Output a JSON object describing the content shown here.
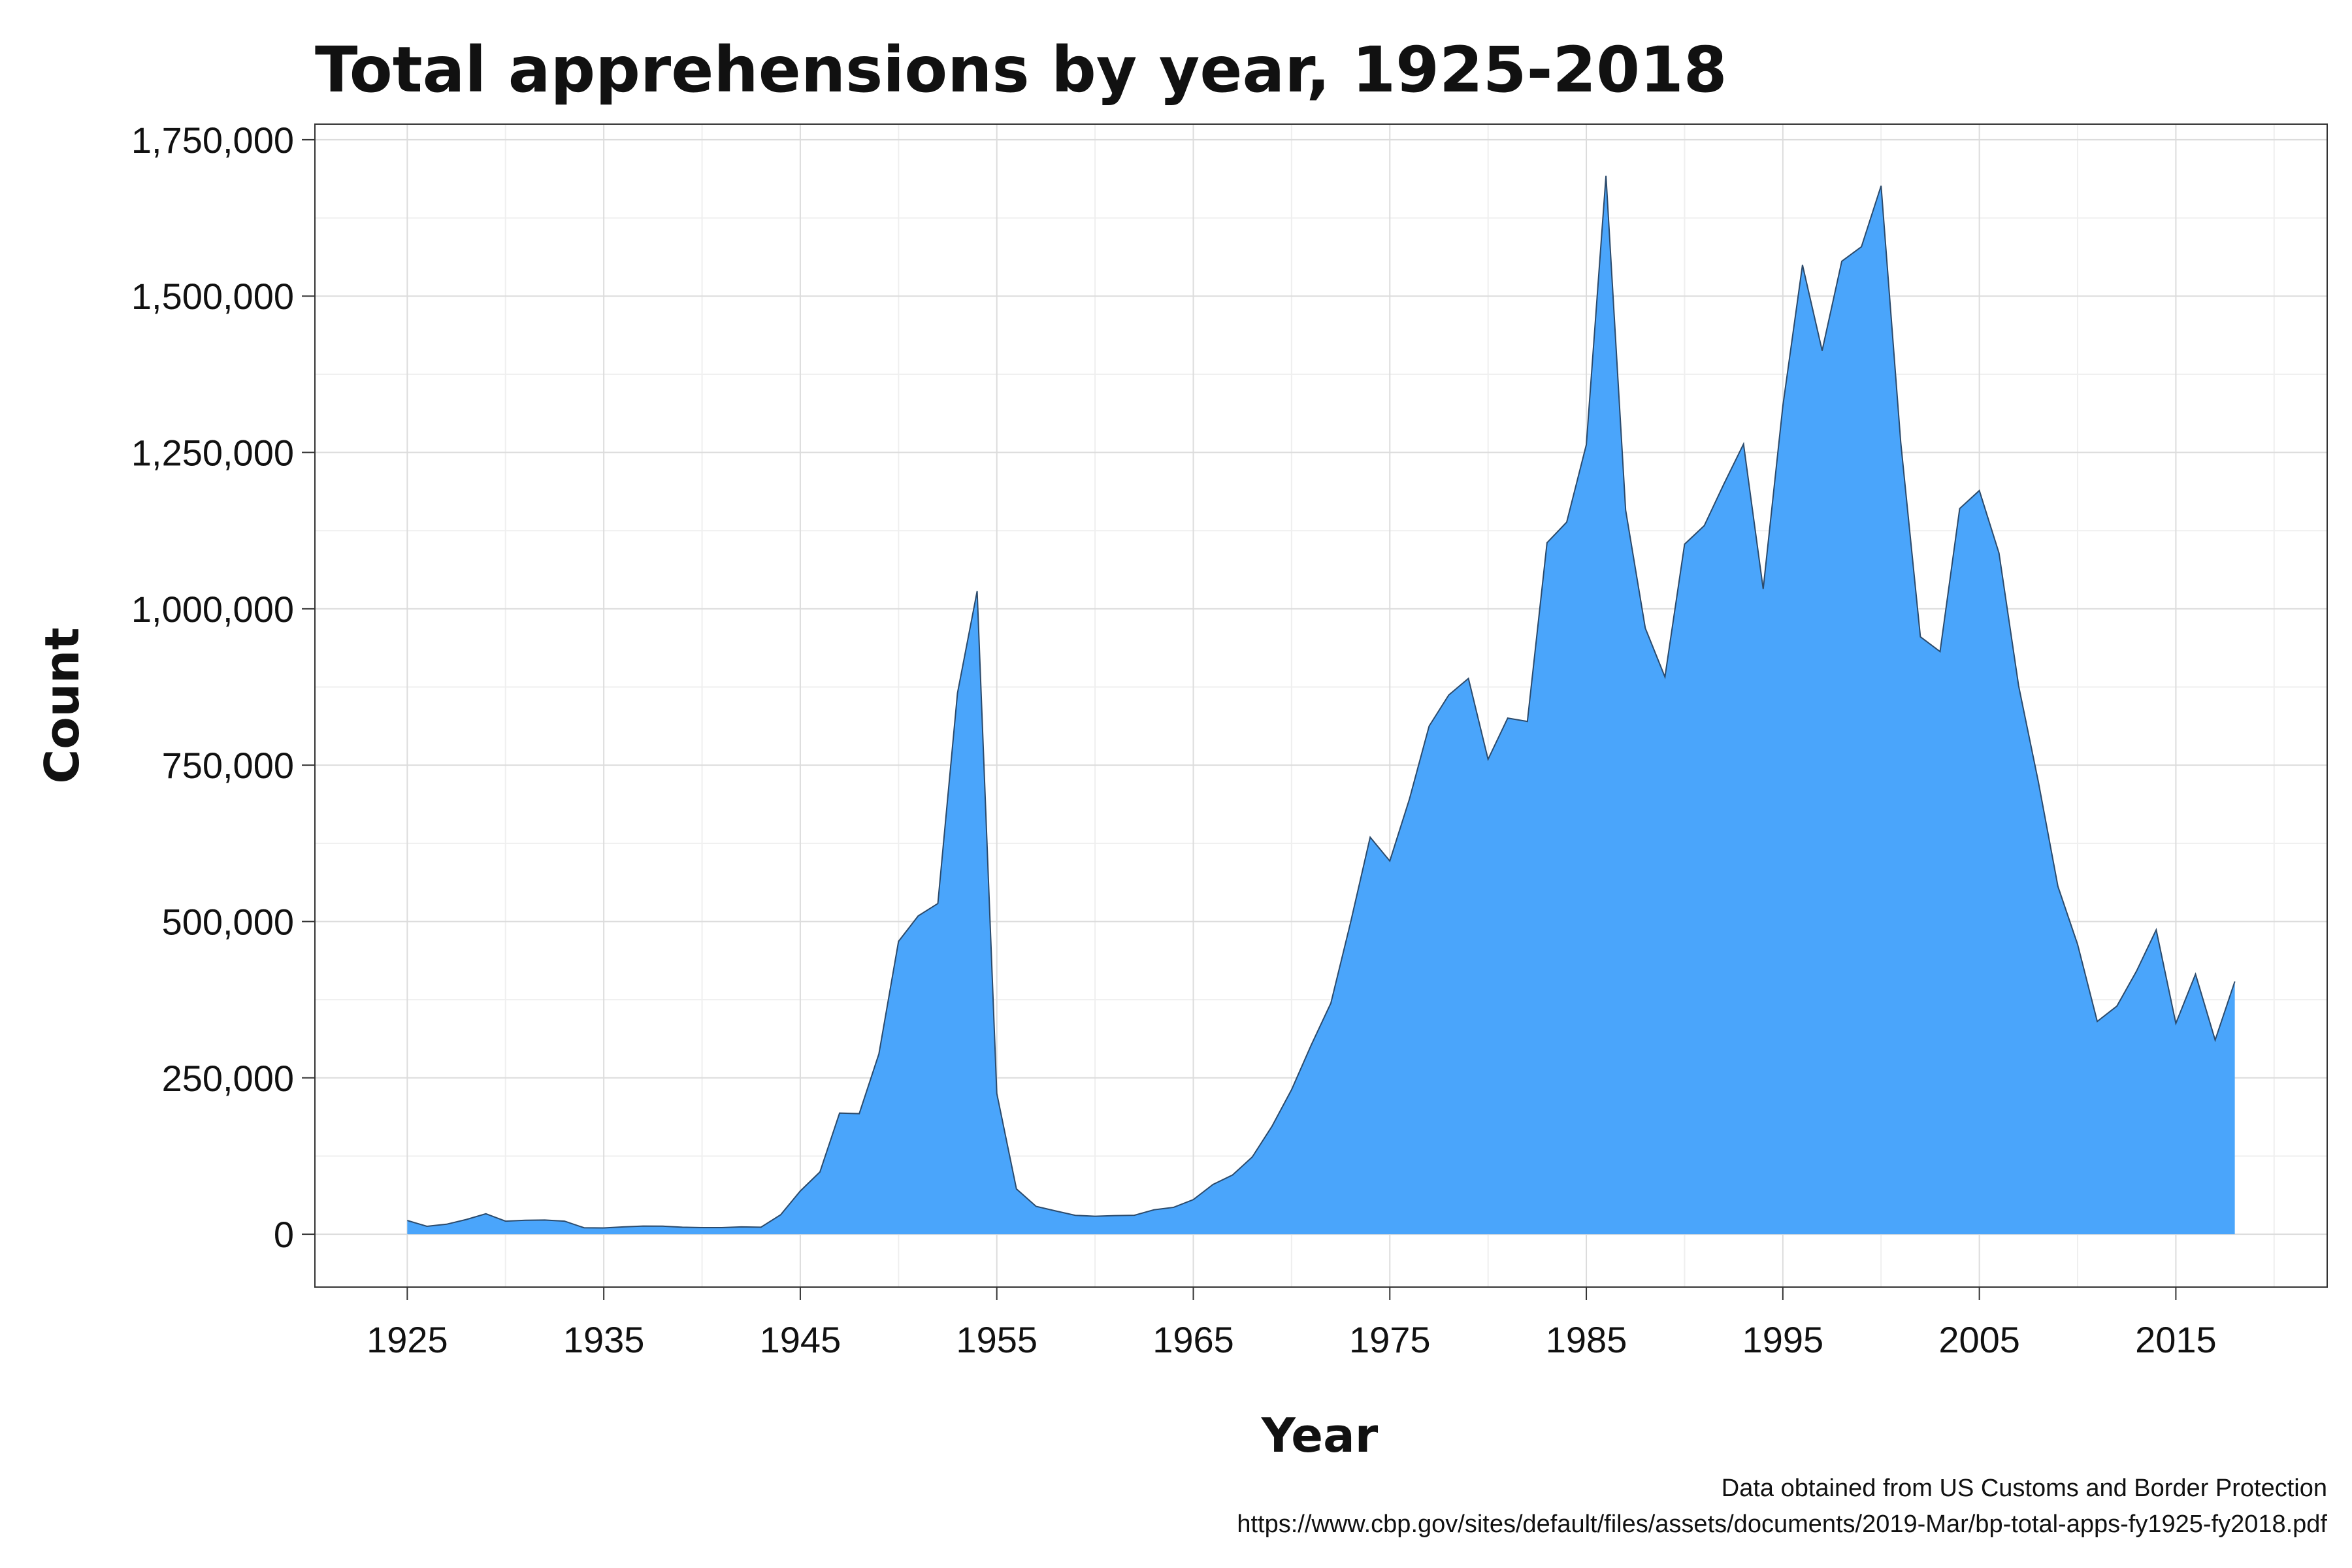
{
  "chart_data": {
    "type": "area",
    "title": "Total apprehensions by year, 1925-2018",
    "xlabel": "Year",
    "ylabel": "Count",
    "caption_lines": [
      "Data obtained from US Customs and Border Protection",
      "https://www.cbp.gov/sites/default/files/assets/documents/2019-Mar/bp-total-apps-fy1925-fy2018.pdf"
    ],
    "xlim": [
      1920.3,
      2022.7
    ],
    "ylim": [
      -84500,
      1775000
    ],
    "x_ticks": [
      1925,
      1935,
      1945,
      1955,
      1965,
      1975,
      1985,
      1995,
      2005,
      2015
    ],
    "x_tick_labels": [
      "1925",
      "1935",
      "1945",
      "1955",
      "1965",
      "1975",
      "1985",
      "1995",
      "2005",
      "2015"
    ],
    "y_ticks": [
      0,
      250000,
      500000,
      750000,
      1000000,
      1250000,
      1500000,
      1750000
    ],
    "y_tick_labels": [
      "0",
      "250,000",
      "500,000",
      "750,000",
      "1,000,000",
      "1,250,000",
      "1,500,000",
      "1,750,000"
    ],
    "grid": true,
    "fill_color": "#4aa5fb",
    "line_color": "#2b4a6b",
    "series": [
      {
        "x": [
          1925,
          1926,
          1927,
          1928,
          1929,
          1930,
          1931,
          1932,
          1933,
          1934,
          1935,
          1936,
          1937,
          1938,
          1939,
          1940,
          1941,
          1942,
          1943,
          1944,
          1945,
          1946,
          1947,
          1948,
          1949,
          1950,
          1951,
          1952,
          1953,
          1954,
          1955,
          1956,
          1957,
          1958,
          1959,
          1960,
          1961,
          1962,
          1963,
          1964,
          1965,
          1966,
          1967,
          1968,
          1969,
          1970,
          1971,
          1972,
          1973,
          1974,
          1975,
          1976,
          1977,
          1978,
          1979,
          1980,
          1981,
          1982,
          1983,
          1984,
          1985,
          1986,
          1987,
          1988,
          1989,
          1990,
          1991,
          1992,
          1993,
          1994,
          1995,
          1996,
          1997,
          1998,
          1999,
          2000,
          2001,
          2002,
          2003,
          2004,
          2005,
          2006,
          2007,
          2008,
          2009,
          2010,
          2011,
          2012,
          2013,
          2014,
          2015,
          2016,
          2017,
          2018
        ],
        "y": [
          22000,
          12700,
          16000,
          23500,
          32700,
          20900,
          22300,
          22700,
          20900,
          10300,
          10100,
          11700,
          13100,
          12900,
          11200,
          10500,
          10500,
          11800,
          11200,
          31100,
          69100,
          99600,
          193700,
          192800,
          288300,
          468300,
          509000,
          528800,
          865300,
          1028200,
          225200,
          72400,
          44500,
          37200,
          30200,
          28700,
          29800,
          30300,
          39100,
          43000,
          55300,
          79600,
          94800,
          123500,
          172400,
          231100,
          302500,
          369500,
          498100,
          634800,
          596800,
          696000,
          812500,
          862200,
          888700,
          759400,
          825300,
          819900,
          1105700,
          1138600,
          1262400,
          1692500,
          1158000,
          969200,
          891100,
          1103400,
          1132900,
          1199600,
          1263500,
          1031700,
          1324200,
          1549900,
          1412900,
          1555800,
          1579000,
          1676400,
          1266200,
          955300,
          931600,
          1160400,
          1189100,
          1089100,
          876700,
          723800,
          556000,
          463400,
          340300,
          364800,
          420800,
          486700,
          337100,
          415800,
          310500,
          404100
        ]
      }
    ]
  }
}
